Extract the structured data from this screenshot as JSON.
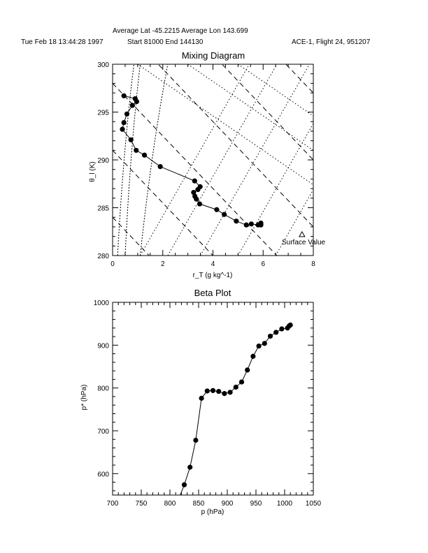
{
  "header": {
    "average": "Average Lat  -45.2215  Average Lon  143.699",
    "date": "Tue Feb 18 13:44:28 1997",
    "range": "Start  81000  End  144130",
    "flight": "ACE-1, Flight 24, 951207"
  },
  "chart_data": [
    {
      "type": "scatter",
      "title": "Mixing Diagram",
      "xlabel": "r_T (g kg^-1)",
      "ylabel": "θ_l (K)",
      "xlim": [
        0,
        8
      ],
      "ylim": [
        280,
        300
      ],
      "xticks": [
        "0",
        "2",
        "4",
        "6",
        "8"
      ],
      "yticks": [
        "280",
        "285",
        "290",
        "295",
        "300"
      ],
      "annotation": "Surface Value",
      "surface_value": {
        "x": 7.55,
        "y": 282.2
      },
      "x": [
        0.45,
        0.9,
        0.96,
        0.79,
        0.57,
        0.45,
        0.39,
        0.73,
        0.94,
        1.27,
        1.9,
        3.27,
        3.49,
        3.4,
        3.23,
        3.28,
        3.34,
        3.47,
        4.15,
        4.45,
        4.93,
        5.33,
        5.53,
        5.8,
        5.91,
        5.91
      ],
      "y": [
        296.7,
        296.4,
        296.1,
        295.7,
        294.8,
        293.9,
        293.2,
        292.1,
        291.0,
        290.5,
        289.3,
        287.8,
        287.2,
        286.9,
        286.6,
        286.2,
        285.9,
        285.4,
        284.8,
        284.3,
        283.6,
        283.2,
        283.3,
        283.2,
        283.4,
        283.2
      ]
    },
    {
      "type": "line",
      "title": "Beta Plot",
      "xlabel": "p (hPa)",
      "ylabel": "p* (hPa)",
      "xlim": [
        700,
        1050
      ],
      "ylim": [
        550,
        1000
      ],
      "xticks": [
        "700",
        "750",
        "800",
        "850",
        "900",
        "950",
        "1000",
        "1050"
      ],
      "yticks": [
        "600",
        "700",
        "800",
        "900",
        "1000"
      ],
      "x": [
        815,
        825,
        835,
        845,
        855,
        865,
        875,
        885,
        895,
        905,
        915,
        925,
        935,
        945,
        955,
        965,
        975,
        985,
        995,
        1005,
        1008,
        1010
      ],
      "y": [
        540,
        574,
        615,
        678,
        776,
        793,
        794,
        792,
        787,
        790,
        802,
        814,
        842,
        874,
        898,
        904,
        921,
        930,
        938,
        940,
        945,
        947
      ]
    }
  ]
}
